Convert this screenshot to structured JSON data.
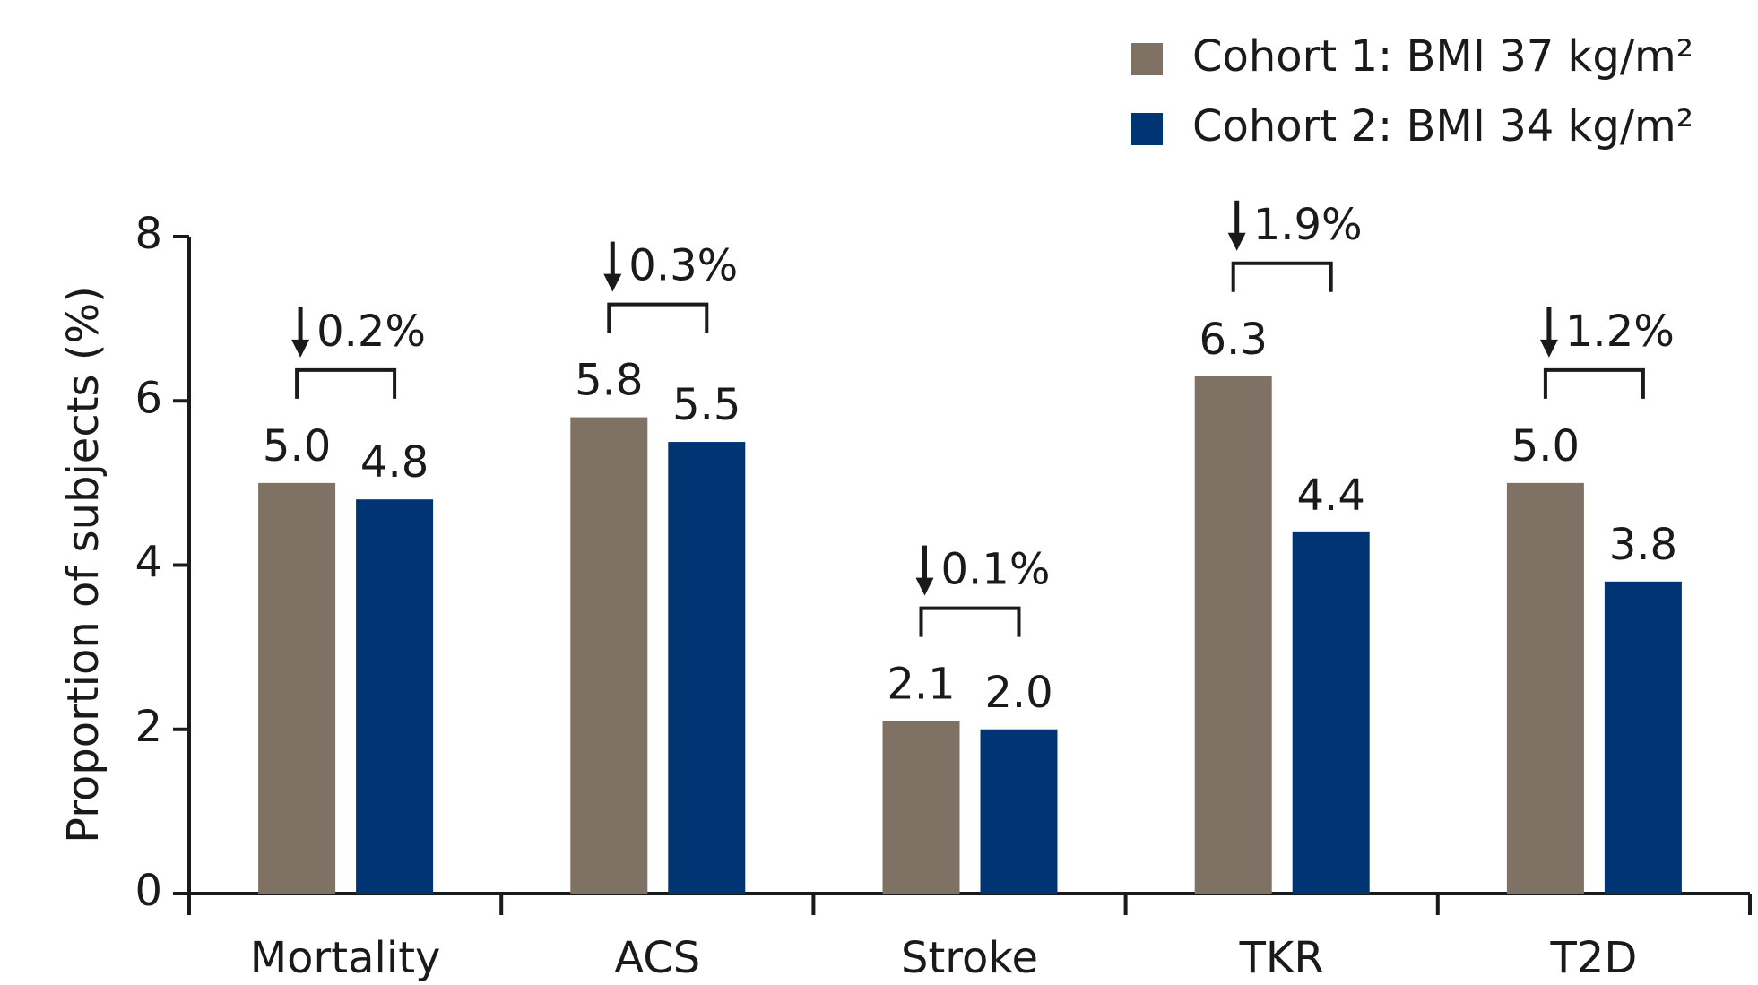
{
  "chart_data": {
    "type": "bar",
    "y_label": "Proportion of subjects (%)",
    "categories": [
      "Mortality",
      "ACS",
      "Stroke",
      "TKR",
      "T2D"
    ],
    "series": [
      {
        "name": "Cohort 1: BMI 37 kg/m²",
        "color": "#7f7265",
        "values": [
          5.0,
          5.8,
          2.1,
          6.3,
          5.0
        ],
        "value_labels": [
          "5.0",
          "5.8",
          "2.1",
          "6.3",
          "5.0"
        ]
      },
      {
        "name": "Cohort 2: BMI 34 kg/m²",
        "color": "#003473",
        "values": [
          4.8,
          5.5,
          2.0,
          4.4,
          3.8
        ],
        "value_labels": [
          "4.8",
          "5.5",
          "2.0",
          "4.4",
          "3.8"
        ]
      }
    ],
    "annotations": [
      "0.2%",
      "0.3%",
      "0.1%",
      "1.9%",
      "1.2%"
    ],
    "ylim": [
      0,
      8
    ],
    "yticks": [
      0,
      2,
      4,
      6,
      8
    ],
    "grid": false,
    "legend": "top-right"
  }
}
